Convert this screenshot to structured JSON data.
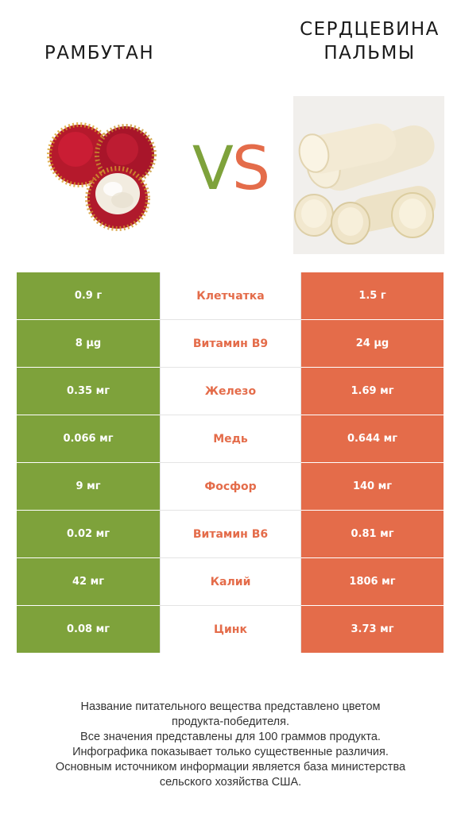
{
  "left_product": {
    "title": "РАМБУТАН",
    "color": "#7ea23b"
  },
  "right_product": {
    "title_line1": "СЕРДЦЕВИНА",
    "title_line2": "ПАЛЬМЫ",
    "color": "#e46c4a"
  },
  "vs": {
    "v": "V",
    "s": "S"
  },
  "rows": [
    {
      "left": "0.9 г",
      "nutrient": "Клетчатка",
      "right": "1.5 г"
    },
    {
      "left": "8 µg",
      "nutrient": "Витамин B9",
      "right": "24 µg"
    },
    {
      "left": "0.35 мг",
      "nutrient": "Железо",
      "right": "1.69 мг"
    },
    {
      "left": "0.066 мг",
      "nutrient": "Медь",
      "right": "0.644 мг"
    },
    {
      "left": "9 мг",
      "nutrient": "Фосфор",
      "right": "140 мг"
    },
    {
      "left": "0.02 мг",
      "nutrient": "Витамин B6",
      "right": "0.81 мг"
    },
    {
      "left": "42 мг",
      "nutrient": "Калий",
      "right": "1806 мг"
    },
    {
      "left": "0.08 мг",
      "nutrient": "Цинк",
      "right": "3.73 мг"
    }
  ],
  "footer": {
    "line1": "Название питательного вещества представлено цветом",
    "line2": "продукта-победителя.",
    "line3": "Все значения представлены для 100 граммов продукта.",
    "line4": "Инфографика показывает только существенные различия.",
    "line5": "Основным источником информации является база министерства",
    "line6": "сельского хозяйства США."
  }
}
